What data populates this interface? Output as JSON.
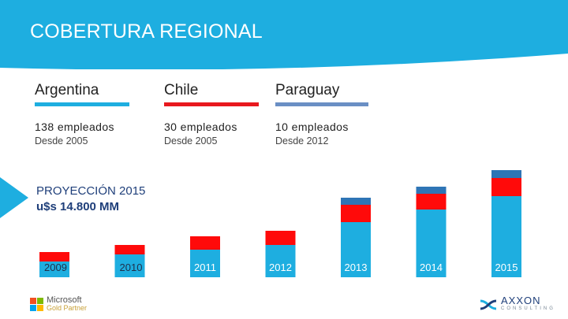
{
  "header": {
    "title": "COBERTURA REGIONAL"
  },
  "colors": {
    "header": "#1eaee0",
    "teal": "#1eaee0",
    "red": "#ff0a0a",
    "steel": "#2e75b6"
  },
  "countries": [
    {
      "name": "Argentina",
      "employees": "138 empleados",
      "since": "Desde 2005",
      "color": "#1eaee0"
    },
    {
      "name": "Chile",
      "employees": "30 empleados",
      "since": "Desde 2005",
      "color": "#e8181e"
    },
    {
      "name": "Paraguay",
      "employees": "10 empleados",
      "since": "Desde 2012",
      "color": "#6a8fc4"
    }
  ],
  "projection": {
    "line1": "PROYECCIÓN 2015",
    "line2": "u$s 14.800 MM"
  },
  "chart_data": {
    "type": "bar",
    "stacked": true,
    "categories": [
      "2009",
      "2010",
      "2011",
      "2012",
      "2013",
      "2014",
      "2015"
    ],
    "series": [
      {
        "name": "Argentina",
        "color": "#1eaee0",
        "values": [
          20,
          29,
          35,
          41,
          70,
          86,
          103
        ]
      },
      {
        "name": "Chile",
        "color": "#ff0a0a",
        "values": [
          12,
          12,
          17,
          18,
          22,
          20,
          23
        ]
      },
      {
        "name": "Paraguay",
        "color": "#2e75b6",
        "values": [
          0,
          0,
          0,
          0,
          9,
          9,
          10
        ]
      }
    ],
    "ylim": [
      0,
      140
    ]
  },
  "logos": {
    "microsoft": {
      "line1": "Microsoft",
      "line2": "Gold Partner"
    },
    "axxon": {
      "line1": "AXXON",
      "line2": "CONSULTING"
    }
  }
}
